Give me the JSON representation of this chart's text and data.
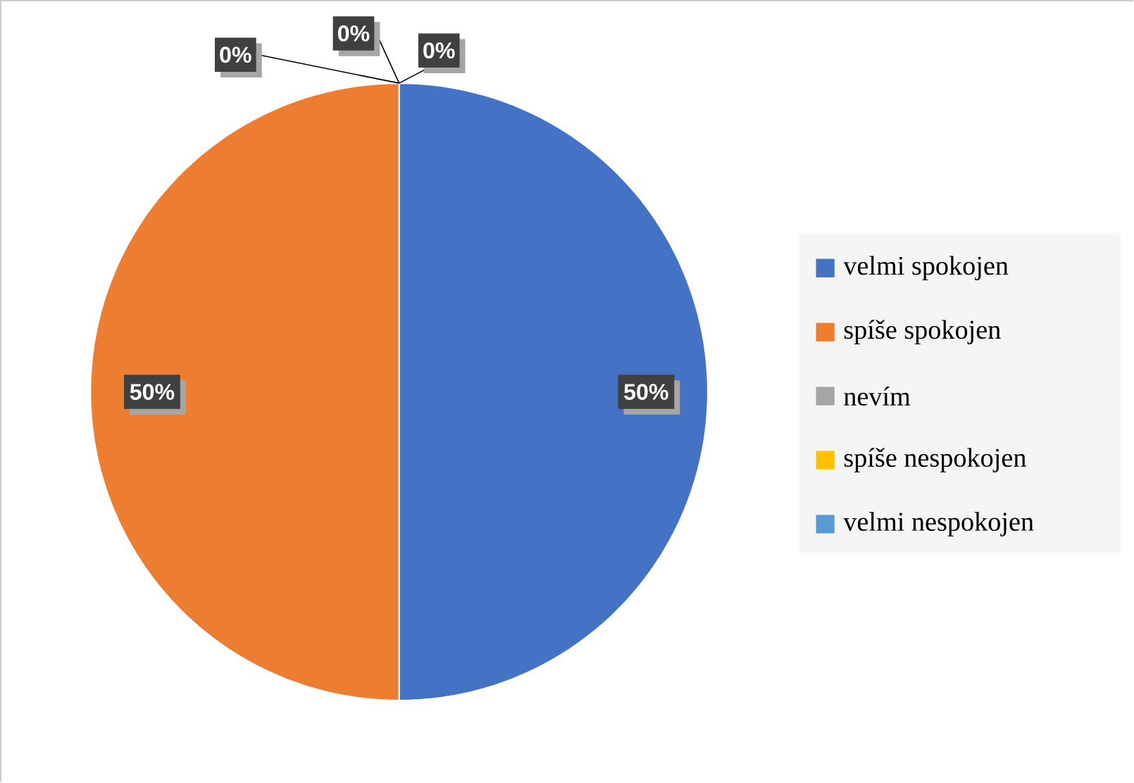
{
  "chart_data": {
    "type": "pie",
    "categories": [
      "velmi spokojen",
      "spíše spokojen",
      "nevím",
      "spíše nespokojen",
      "velmi nespokojen"
    ],
    "values": [
      50,
      50,
      0,
      0,
      0
    ],
    "colors": [
      "#4472c4",
      "#ed7d31",
      "#a5a5a5",
      "#ffc000",
      "#5b9bd5"
    ],
    "value_labels": [
      "50%",
      "50%",
      "0%",
      "0%",
      "0%"
    ],
    "legend": "right"
  }
}
